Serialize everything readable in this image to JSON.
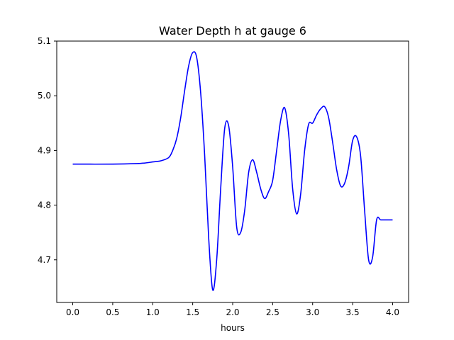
{
  "chart_data": {
    "type": "line",
    "title": "Water Depth h at gauge 6",
    "xlabel": "hours",
    "ylabel": "",
    "xlim": [
      -0.2,
      4.2
    ],
    "ylim": [
      4.622,
      5.1
    ],
    "x_ticks": [
      {
        "value": 0.0,
        "label": "0.0"
      },
      {
        "value": 0.5,
        "label": "0.5"
      },
      {
        "value": 1.0,
        "label": "1.0"
      },
      {
        "value": 1.5,
        "label": "1.5"
      },
      {
        "value": 2.0,
        "label": "2.0"
      },
      {
        "value": 2.5,
        "label": "2.5"
      },
      {
        "value": 3.0,
        "label": "3.0"
      },
      {
        "value": 3.5,
        "label": "3.5"
      },
      {
        "value": 4.0,
        "label": "4.0"
      }
    ],
    "y_ticks": [
      {
        "value": 4.7,
        "label": "4.7"
      },
      {
        "value": 4.8,
        "label": "4.8"
      },
      {
        "value": 4.9,
        "label": "4.9"
      },
      {
        "value": 5.0,
        "label": "5.0"
      },
      {
        "value": 5.1,
        "label": "5.1"
      }
    ],
    "grid": false,
    "series": [
      {
        "color": "#0000ff",
        "x": [
          0.0,
          0.5,
          0.8,
          0.9,
          1.0,
          1.1,
          1.2,
          1.25,
          1.3,
          1.35,
          1.4,
          1.45,
          1.5,
          1.55,
          1.6,
          1.65,
          1.7,
          1.75,
          1.8,
          1.85,
          1.9,
          1.95,
          2.0,
          2.05,
          2.1,
          2.15,
          2.2,
          2.25,
          2.3,
          2.35,
          2.4,
          2.45,
          2.5,
          2.55,
          2.6,
          2.65,
          2.7,
          2.75,
          2.8,
          2.85,
          2.9,
          2.95,
          3.0,
          3.05,
          3.1,
          3.15,
          3.2,
          3.25,
          3.3,
          3.35,
          3.4,
          3.45,
          3.5,
          3.55,
          3.6,
          3.65,
          3.7,
          3.75,
          3.8,
          3.85,
          3.9,
          3.95,
          4.0
        ],
        "y": [
          4.875,
          4.875,
          4.876,
          4.877,
          4.879,
          4.881,
          4.887,
          4.9,
          4.922,
          4.96,
          5.01,
          5.055,
          5.079,
          5.07,
          5.005,
          4.89,
          4.74,
          4.645,
          4.7,
          4.83,
          4.94,
          4.945,
          4.87,
          4.76,
          4.75,
          4.79,
          4.86,
          4.883,
          4.86,
          4.83,
          4.812,
          4.825,
          4.845,
          4.9,
          4.955,
          4.978,
          4.93,
          4.83,
          4.784,
          4.82,
          4.9,
          4.948,
          4.95,
          4.965,
          4.976,
          4.98,
          4.96,
          4.915,
          4.865,
          4.835,
          4.84,
          4.87,
          4.918,
          4.925,
          4.89,
          4.79,
          4.7,
          4.705,
          4.773,
          4.773,
          4.773,
          4.773,
          4.773
        ]
      }
    ]
  }
}
